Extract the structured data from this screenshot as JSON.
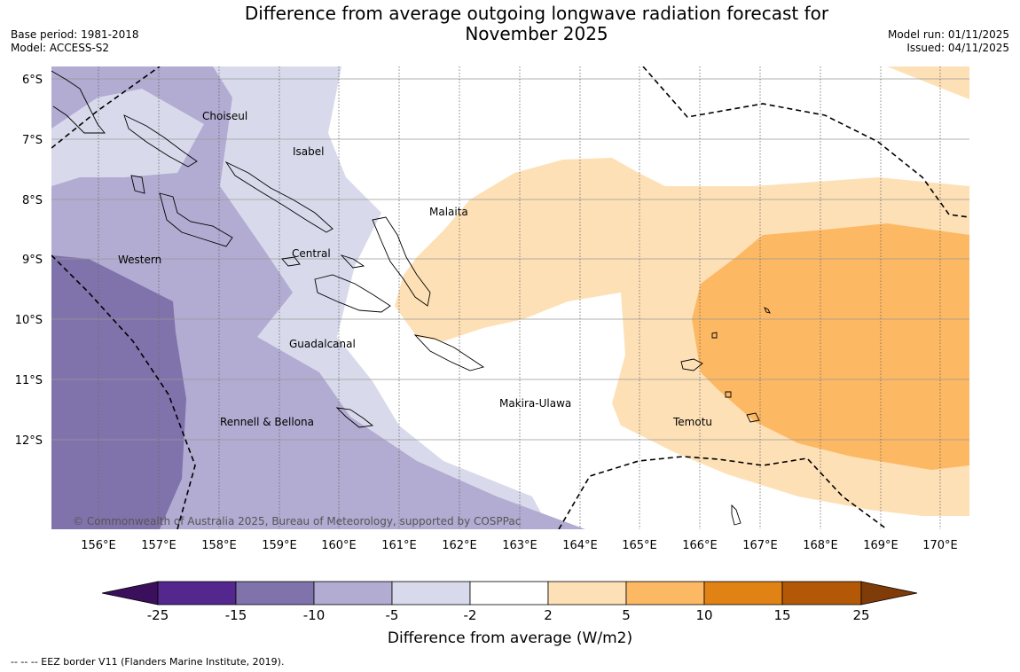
{
  "header": {
    "title_line1": "Difference from average outgoing longwave radiation forecast for",
    "title_line2": "November 2025",
    "base_period": "Base period: 1981-2018",
    "model": "Model: ACCESS-S2",
    "model_run": "Model run: 01/11/2025",
    "issued": "Issued: 04/11/2025"
  },
  "map": {
    "lat_labels": [
      "6°S",
      "7°S",
      "8°S",
      "9°S",
      "10°S",
      "11°S",
      "12°S"
    ],
    "lon_labels": [
      "156°E",
      "157°E",
      "158°E",
      "159°E",
      "160°E",
      "161°E",
      "162°E",
      "163°E",
      "164°E",
      "165°E",
      "166°E",
      "167°E",
      "168°E",
      "169°E",
      "170°E"
    ],
    "provinces": [
      "Choiseul",
      "Isabel",
      "Malaita",
      "Central",
      "Western",
      "Guadalcanal",
      "Makira-Ulawa",
      "Rennell & Bellona",
      "Temotu"
    ],
    "copyright": "© Commonwealth of Australia 2025, Bureau of Meteorology, supported by COSPPac"
  },
  "colorbar": {
    "boundaries": [
      "-25",
      "-15",
      "-10",
      "-5",
      "-2",
      "2",
      "5",
      "10",
      "15",
      "25"
    ],
    "colors": [
      "#3b0f5c",
      "#54278f",
      "#8073ac",
      "#b2abd2",
      "#d8daeb",
      "#ffffff",
      "#fee0b6",
      "#fdb863",
      "#e08214",
      "#b35806",
      "#7f3b08"
    ],
    "title": "Difference from average (W/m2)"
  },
  "footnote": "--  --  -- EEZ border V11 (Flanders Marine Institute, 2019)."
}
